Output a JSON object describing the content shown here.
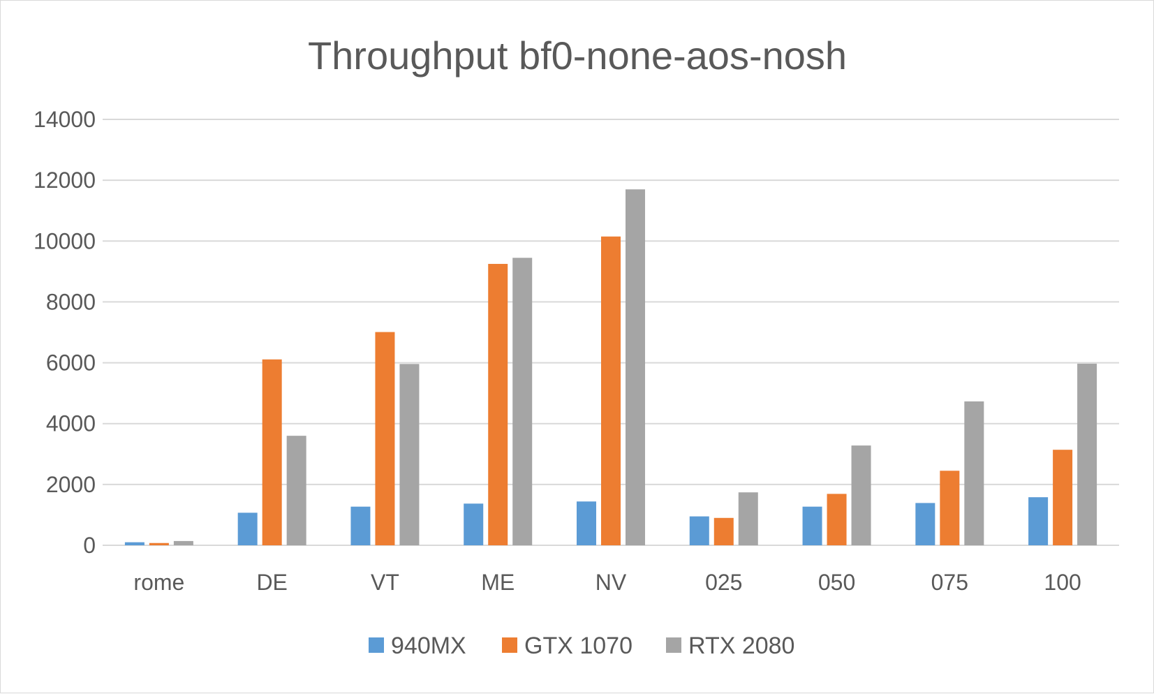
{
  "chart_data": {
    "type": "bar",
    "title": "Throughput bf0-none-aos-nosh",
    "xlabel": "",
    "ylabel": "",
    "ylim": [
      0,
      14000
    ],
    "yticks": [
      "0",
      "2000",
      "4000",
      "6000",
      "8000",
      "10000",
      "12000",
      "14000"
    ],
    "grid": true,
    "legend_position": "bottom",
    "categories": [
      "rome",
      "DE",
      "VT",
      "ME",
      "NV",
      "025",
      "050",
      "075",
      "100"
    ],
    "series": [
      {
        "name": "940MX",
        "color": "#5b9bd5",
        "values": [
          100,
          1070,
          1270,
          1370,
          1440,
          950,
          1270,
          1390,
          1580
        ]
      },
      {
        "name": "GTX 1070",
        "color": "#ed7d31",
        "values": [
          75,
          6110,
          7010,
          9250,
          10150,
          900,
          1690,
          2450,
          3140
        ]
      },
      {
        "name": "RTX 2080",
        "color": "#a5a5a5",
        "values": [
          140,
          3600,
          5960,
          9450,
          11700,
          1740,
          3280,
          4730,
          5970
        ]
      }
    ]
  }
}
